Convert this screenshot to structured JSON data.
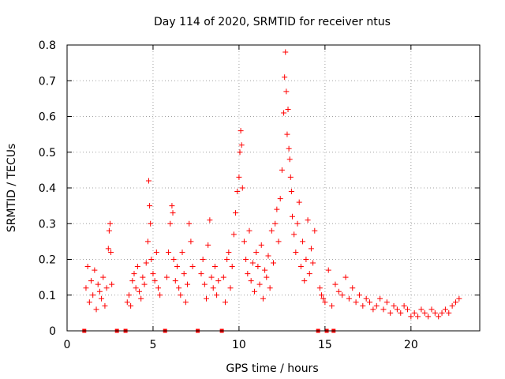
{
  "chart_data": {
    "type": "scatter",
    "title": "Day 114 of 2020, SRMTID for receiver ntus",
    "xlabel": "GPS time / hours",
    "ylabel": "SRMTID / TECUs",
    "xlim": [
      0,
      24
    ],
    "ylim": [
      0,
      0.8
    ],
    "x_ticks": [
      0,
      5,
      10,
      15,
      20
    ],
    "y_ticks": [
      0,
      0.1,
      0.2,
      0.3,
      0.4,
      0.5,
      0.6,
      0.7,
      0.8
    ],
    "x_tick_labels": [
      "0",
      "5",
      "10",
      "15",
      "20"
    ],
    "y_tick_labels": [
      "0",
      "0.1",
      "0.2",
      "0.3",
      "0.4",
      "0.5",
      "0.6",
      "0.7",
      "0.8"
    ],
    "grid": true,
    "marker": "plus",
    "color": "#ff0000",
    "zero_value_markers_x": [
      1.0,
      2.9,
      3.4,
      5.7,
      7.6,
      9.0,
      14.6,
      15.1,
      15.5
    ],
    "series": [
      {
        "name": "SRMTID",
        "x": [
          1.1,
          1.2,
          1.3,
          1.4,
          1.5,
          1.6,
          1.7,
          1.8,
          1.9,
          2.0,
          2.1,
          2.2,
          2.3,
          2.4,
          2.45,
          2.5,
          2.55,
          2.6,
          3.5,
          3.6,
          3.7,
          3.8,
          3.9,
          4.0,
          4.1,
          4.2,
          4.3,
          4.4,
          4.5,
          4.6,
          4.7,
          4.75,
          4.8,
          4.85,
          4.9,
          5.0,
          5.1,
          5.2,
          5.3,
          5.4,
          5.8,
          5.9,
          6.0,
          6.1,
          6.15,
          6.2,
          6.3,
          6.4,
          6.5,
          6.6,
          6.7,
          6.8,
          6.9,
          7.0,
          7.1,
          7.2,
          7.3,
          7.8,
          7.9,
          8.0,
          8.1,
          8.2,
          8.3,
          8.4,
          8.5,
          8.6,
          8.7,
          8.8,
          9.1,
          9.2,
          9.3,
          9.4,
          9.5,
          9.6,
          9.7,
          9.8,
          9.9,
          10.0,
          10.05,
          10.1,
          10.15,
          10.2,
          10.3,
          10.4,
          10.5,
          10.6,
          10.7,
          10.8,
          10.9,
          11.0,
          11.1,
          11.2,
          11.3,
          11.4,
          11.5,
          11.6,
          11.7,
          11.8,
          11.9,
          12.0,
          12.1,
          12.2,
          12.3,
          12.4,
          12.5,
          12.6,
          12.65,
          12.7,
          12.75,
          12.8,
          12.85,
          12.9,
          12.95,
          13.0,
          13.05,
          13.1,
          13.2,
          13.3,
          13.4,
          13.5,
          13.6,
          13.7,
          13.8,
          13.9,
          14.0,
          14.1,
          14.2,
          14.3,
          14.4,
          14.7,
          14.8,
          14.9,
          15.0,
          15.2,
          15.4,
          15.6,
          15.8,
          16.0,
          16.2,
          16.4,
          16.6,
          16.8,
          17.0,
          17.2,
          17.4,
          17.6,
          17.8,
          18.0,
          18.2,
          18.4,
          18.6,
          18.8,
          19.0,
          19.2,
          19.4,
          19.6,
          19.8,
          20.0,
          20.2,
          20.4,
          20.6,
          20.8,
          21.0,
          21.2,
          21.4,
          21.6,
          21.8,
          22.0,
          22.2,
          22.4,
          22.6,
          22.8
        ],
        "y": [
          0.12,
          0.18,
          0.08,
          0.14,
          0.1,
          0.17,
          0.06,
          0.13,
          0.11,
          0.09,
          0.15,
          0.07,
          0.12,
          0.23,
          0.28,
          0.3,
          0.22,
          0.13,
          0.08,
          0.1,
          0.07,
          0.14,
          0.16,
          0.12,
          0.18,
          0.11,
          0.09,
          0.15,
          0.13,
          0.19,
          0.25,
          0.42,
          0.35,
          0.3,
          0.2,
          0.16,
          0.14,
          0.22,
          0.12,
          0.1,
          0.15,
          0.22,
          0.3,
          0.35,
          0.33,
          0.2,
          0.14,
          0.18,
          0.12,
          0.1,
          0.22,
          0.16,
          0.08,
          0.13,
          0.3,
          0.25,
          0.18,
          0.16,
          0.2,
          0.13,
          0.09,
          0.24,
          0.31,
          0.15,
          0.12,
          0.18,
          0.1,
          0.14,
          0.15,
          0.08,
          0.2,
          0.22,
          0.12,
          0.18,
          0.27,
          0.33,
          0.39,
          0.43,
          0.5,
          0.56,
          0.52,
          0.4,
          0.25,
          0.2,
          0.16,
          0.28,
          0.14,
          0.19,
          0.11,
          0.22,
          0.18,
          0.13,
          0.24,
          0.09,
          0.17,
          0.15,
          0.21,
          0.12,
          0.28,
          0.19,
          0.3,
          0.34,
          0.25,
          0.37,
          0.45,
          0.61,
          0.71,
          0.78,
          0.67,
          0.55,
          0.62,
          0.51,
          0.48,
          0.43,
          0.39,
          0.32,
          0.27,
          0.22,
          0.3,
          0.36,
          0.18,
          0.25,
          0.14,
          0.2,
          0.31,
          0.16,
          0.23,
          0.19,
          0.28,
          0.12,
          0.1,
          0.09,
          0.08,
          0.17,
          0.07,
          0.13,
          0.11,
          0.1,
          0.15,
          0.09,
          0.12,
          0.08,
          0.1,
          0.07,
          0.09,
          0.08,
          0.06,
          0.07,
          0.09,
          0.06,
          0.08,
          0.05,
          0.07,
          0.06,
          0.05,
          0.07,
          0.06,
          0.04,
          0.05,
          0.04,
          0.06,
          0.05,
          0.04,
          0.06,
          0.05,
          0.04,
          0.05,
          0.06,
          0.05,
          0.07,
          0.08,
          0.09
        ]
      }
    ]
  }
}
